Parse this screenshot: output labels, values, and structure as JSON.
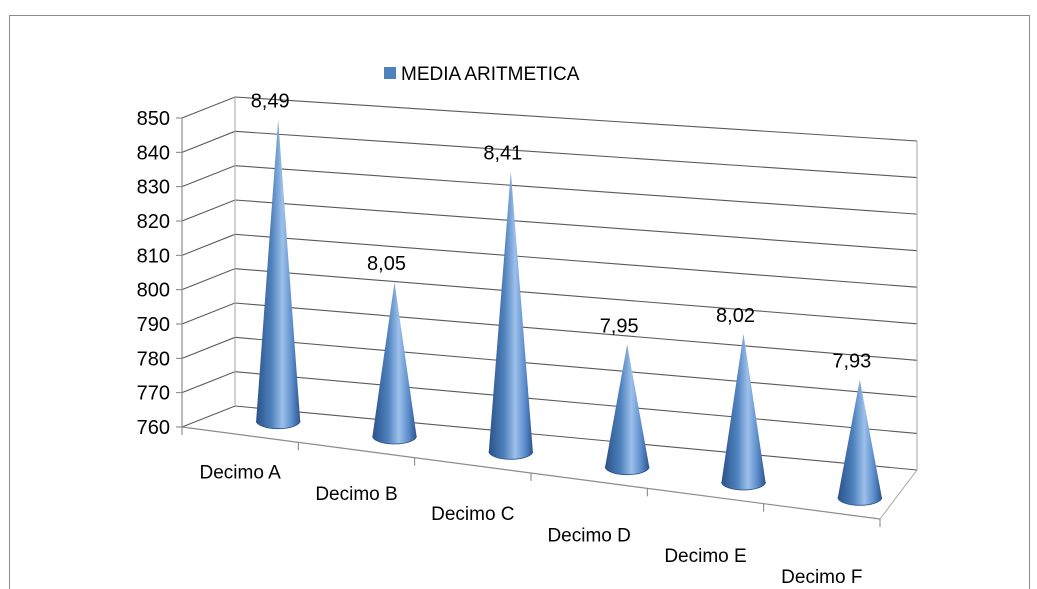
{
  "chart_data": {
    "type": "bar",
    "subtype": "3d-cone",
    "categories": [
      "Decimo A",
      "Decimo B",
      "Decimo C",
      "Decimo D",
      "Decimo E",
      "Decimo F"
    ],
    "series": [
      {
        "name": "MEDIA ARITMETICA",
        "values": [
          849,
          805,
          841,
          795,
          802,
          793
        ],
        "data_labels": [
          "8,49",
          "8,05",
          "8,41",
          "7,95",
          "8,02",
          "7,93"
        ]
      }
    ],
    "yticks": [
      "760",
      "770",
      "780",
      "790",
      "800",
      "810",
      "820",
      "830",
      "840",
      "850"
    ],
    "ylim": [
      760,
      850
    ],
    "grid": true,
    "legend_position": "top",
    "colors": {
      "cone_light": "#8db3e2",
      "cone_mid": "#4f81bd",
      "cone_dark": "#1f3f6e",
      "legend_swatch": "#4f81bd",
      "gridline": "#595959"
    }
  }
}
